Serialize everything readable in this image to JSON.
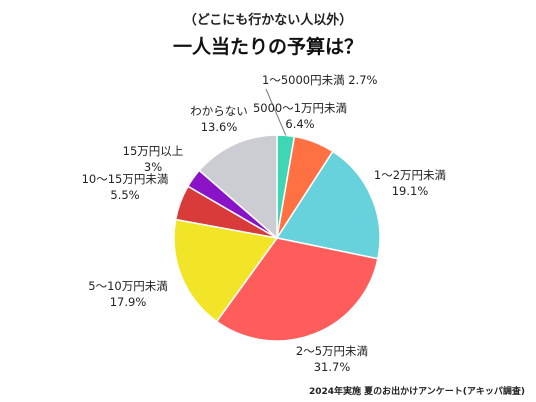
{
  "chart_data": {
    "type": "pie",
    "subtitle": "（どこにも行かない人以外）",
    "title": "一人当たりの予算は？",
    "slices": [
      {
        "label": "1〜5000円未満",
        "value": 2.7,
        "pct_text": "2.7%",
        "color": "#3ED6B5"
      },
      {
        "label": "5000〜1万円未満",
        "value": 6.4,
        "pct_text": "6.4%",
        "color": "#FF7043"
      },
      {
        "label": "1〜2万円未満",
        "value": 19.1,
        "pct_text": "19.1%",
        "color": "#67D2DC"
      },
      {
        "label": "2〜5万円未満",
        "value": 31.7,
        "pct_text": "31.7%",
        "color": "#FF5C5C"
      },
      {
        "label": "5〜10万円未満",
        "value": 17.9,
        "pct_text": "17.9%",
        "color": "#F2E527"
      },
      {
        "label": "10〜15万円未満",
        "value": 5.5,
        "pct_text": "5.5%",
        "color": "#D93B3B"
      },
      {
        "label": "15万円以上",
        "value": 3.0,
        "pct_text": "3%",
        "color": "#8A12C7"
      },
      {
        "label": "わからない",
        "value": 13.6,
        "pct_text": "13.6%",
        "color": "#CCCDD2"
      }
    ]
  },
  "footer": "2024年実施 夏のお出かけアンケート(アキッパ調査)"
}
